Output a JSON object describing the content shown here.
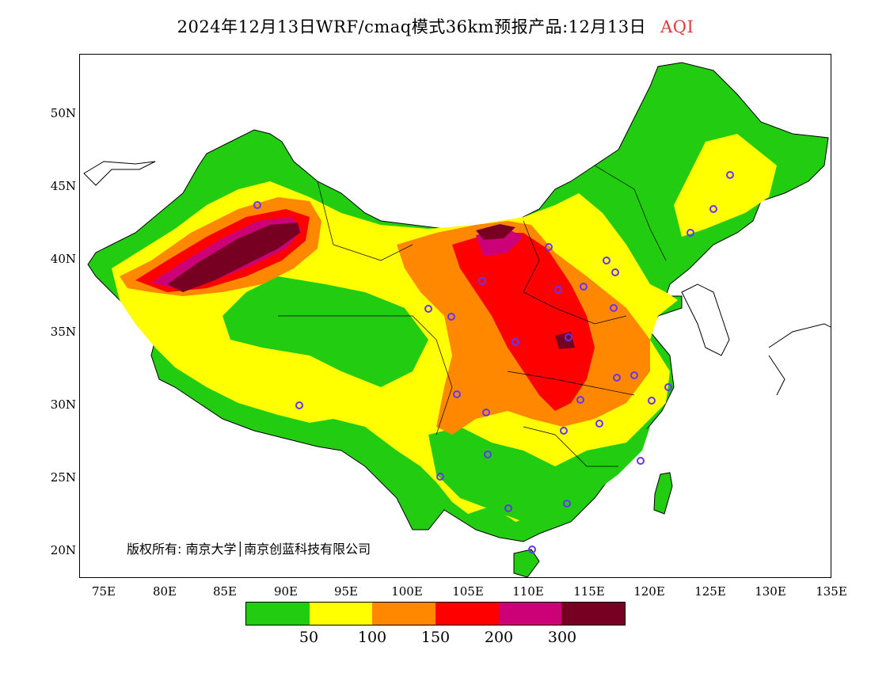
{
  "header": {
    "title": "2024年12月13日WRF/cmaq模式36km预报产品:12月13日",
    "variable": "AQI"
  },
  "map": {
    "lat_labels": [
      "50N",
      "45N",
      "40N",
      "35N",
      "30N",
      "25N",
      "20N"
    ],
    "lon_labels": [
      "75E",
      "80E",
      "85E",
      "90E",
      "95E",
      "100E",
      "105E",
      "110E",
      "115E",
      "120E",
      "125E",
      "130E",
      "135E"
    ],
    "copyright": "版权所有: 南京大学│南京创蓝科技有限公司",
    "extent": {
      "lon": [
        73,
        135
      ],
      "lat": [
        18,
        54
      ]
    }
  },
  "legend": {
    "labels": [
      "50",
      "100",
      "150",
      "200",
      "300"
    ],
    "colors": [
      "#22cc11",
      "#ffff00",
      "#ff8800",
      "#ff0000",
      "#cc0077",
      "#770022"
    ]
  }
}
